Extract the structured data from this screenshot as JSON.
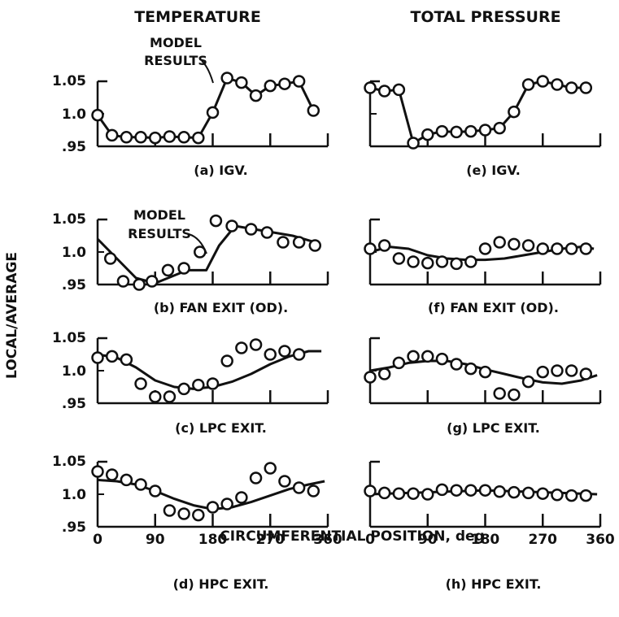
{
  "column_titles": [
    "TEMPERATURE",
    "TOTAL PRESSURE"
  ],
  "ylabel": "LOCAL/AVERAGE",
  "xlabel": "CIRCUMFERENTIAL POSITION, deg",
  "annotation": "MODEL\nRESULTS",
  "y_tick_labels": [
    "1.05",
    "1.0",
    ".95"
  ],
  "x_tick_labels": [
    "0",
    "90",
    "180",
    "270",
    "360"
  ],
  "chart_data": [
    {
      "type": "line",
      "caption": "(a) IGV.",
      "column": "TEMPERATURE",
      "xlim": [
        0,
        360
      ],
      "ylim": [
        0.95,
        1.05
      ],
      "points": {
        "x": [
          0,
          22.5,
          45,
          67.5,
          90,
          112.5,
          135,
          157.5,
          180,
          202.5,
          225,
          247.5,
          270,
          292.5,
          315,
          337.5
        ],
        "y": [
          0.998,
          0.967,
          0.964,
          0.964,
          0.963,
          0.965,
          0.964,
          0.963,
          1.002,
          1.055,
          1.048,
          1.028,
          1.043,
          1.046,
          1.05,
          1.005
        ]
      },
      "model": {
        "x": [
          0,
          22.5,
          45,
          67.5,
          90,
          112.5,
          135,
          157.5,
          180,
          202.5,
          225,
          247.5,
          270,
          292.5,
          315,
          337.5
        ],
        "y": [
          0.998,
          0.967,
          0.964,
          0.964,
          0.963,
          0.965,
          0.964,
          0.963,
          1.002,
          1.055,
          1.048,
          1.028,
          1.043,
          1.046,
          1.05,
          1.005
        ]
      }
    },
    {
      "type": "line",
      "caption": "(b) FAN EXIT (OD).",
      "column": "TEMPERATURE",
      "xlim": [
        0,
        360
      ],
      "ylim": [
        0.95,
        1.05
      ],
      "points": {
        "x": [
          20,
          40,
          65,
          85,
          110,
          135,
          160,
          185,
          210,
          240,
          265,
          290,
          315,
          340
        ],
        "y": [
          0.99,
          0.955,
          0.95,
          0.955,
          0.972,
          0.975,
          1.0,
          1.048,
          1.04,
          1.035,
          1.03,
          1.015,
          1.015,
          1.01
        ]
      },
      "model": {
        "x": [
          0,
          30,
          60,
          90,
          110,
          140,
          170,
          190,
          215,
          245,
          275,
          305,
          340
        ],
        "y": [
          1.02,
          0.99,
          0.96,
          0.952,
          0.96,
          0.972,
          0.972,
          1.01,
          1.04,
          1.035,
          1.03,
          1.025,
          1.015
        ]
      }
    },
    {
      "type": "line",
      "caption": "(c) LPC EXIT.",
      "column": "TEMPERATURE",
      "xlim": [
        0,
        360
      ],
      "ylim": [
        0.95,
        1.05
      ],
      "points": {
        "x": [
          0,
          22.5,
          45,
          67.5,
          90,
          112.5,
          135,
          157.5,
          180,
          202.5,
          225,
          247.5,
          270,
          292.5,
          315
        ],
        "y": [
          1.02,
          1.022,
          1.017,
          0.98,
          0.96,
          0.96,
          0.972,
          0.978,
          0.98,
          1.015,
          1.035,
          1.04,
          1.025,
          1.03,
          1.025
        ]
      },
      "model": {
        "x": [
          0,
          30,
          60,
          90,
          120,
          150,
          180,
          210,
          240,
          270,
          300,
          330,
          350
        ],
        "y": [
          1.025,
          1.02,
          1.005,
          0.985,
          0.975,
          0.972,
          0.975,
          0.983,
          0.995,
          1.01,
          1.022,
          1.03,
          1.03
        ]
      }
    },
    {
      "type": "line",
      "caption": "(d) HPC EXIT.",
      "column": "TEMPERATURE",
      "xlim": [
        0,
        360
      ],
      "ylim": [
        0.95,
        1.05
      ],
      "points": {
        "x": [
          0,
          22.5,
          45,
          67.5,
          90,
          112.5,
          135,
          157.5,
          180,
          202.5,
          225,
          247.5,
          270,
          292.5,
          315,
          337.5
        ],
        "y": [
          1.035,
          1.03,
          1.022,
          1.015,
          1.005,
          0.975,
          0.97,
          0.968,
          0.98,
          0.985,
          0.995,
          1.025,
          1.04,
          1.02,
          1.01,
          1.005
        ]
      },
      "model": {
        "x": [
          0,
          30,
          60,
          90,
          120,
          150,
          180,
          210,
          240,
          270,
          300,
          330,
          355
        ],
        "y": [
          1.022,
          1.02,
          1.015,
          1.005,
          0.993,
          0.983,
          0.977,
          0.98,
          0.988,
          0.998,
          1.008,
          1.015,
          1.02
        ]
      }
    },
    {
      "type": "line",
      "caption": "(e) IGV.",
      "column": "TOTAL PRESSURE",
      "xlim": [
        0,
        360
      ],
      "ylim": [
        0.95,
        1.05
      ],
      "points": {
        "x": [
          0,
          22.5,
          45,
          67.5,
          90,
          112.5,
          135,
          157.5,
          180,
          202.5,
          225,
          247.5,
          270,
          292.5,
          315,
          337.5
        ],
        "y": [
          1.04,
          1.035,
          1.037,
          0.955,
          0.968,
          0.973,
          0.972,
          0.973,
          0.975,
          0.978,
          1.003,
          1.045,
          1.05,
          1.045,
          1.04,
          1.04
        ]
      },
      "model": {
        "x": [
          0,
          22.5,
          45,
          67.5,
          90,
          112.5,
          135,
          157.5,
          180,
          202.5,
          225,
          247.5,
          270,
          292.5,
          315,
          337.5
        ],
        "y": [
          1.04,
          1.035,
          1.037,
          0.955,
          0.968,
          0.973,
          0.972,
          0.973,
          0.975,
          0.978,
          1.003,
          1.045,
          1.05,
          1.045,
          1.04,
          1.04
        ]
      }
    },
    {
      "type": "line",
      "caption": "(f) FAN EXIT (OD).",
      "column": "TOTAL PRESSURE",
      "xlim": [
        0,
        360
      ],
      "ylim": [
        0.95,
        1.05
      ],
      "points": {
        "x": [
          0,
          22.5,
          45,
          67.5,
          90,
          112.5,
          135,
          157.5,
          180,
          202.5,
          225,
          247.5,
          270,
          292.5,
          315,
          337.5
        ],
        "y": [
          1.005,
          1.01,
          0.99,
          0.985,
          0.983,
          0.985,
          0.982,
          0.985,
          1.005,
          1.015,
          1.012,
          1.01,
          1.005,
          1.005,
          1.005,
          1.005
        ]
      },
      "model": {
        "x": [
          0,
          30,
          60,
          90,
          120,
          150,
          180,
          210,
          240,
          270,
          300,
          330,
          350
        ],
        "y": [
          1.0,
          1.008,
          1.005,
          0.995,
          0.99,
          0.988,
          0.988,
          0.99,
          0.995,
          1.0,
          1.005,
          1.008,
          1.005
        ]
      }
    },
    {
      "type": "line",
      "caption": "(g) LPC EXIT.",
      "column": "TOTAL PRESSURE",
      "xlim": [
        0,
        360
      ],
      "ylim": [
        0.95,
        1.05
      ],
      "points": {
        "x": [
          0,
          22.5,
          45,
          67.5,
          90,
          112.5,
          135,
          157.5,
          180,
          202.5,
          225,
          247.5,
          270,
          292.5,
          315,
          337.5
        ],
        "y": [
          0.99,
          0.995,
          1.012,
          1.022,
          1.022,
          1.018,
          1.01,
          1.003,
          0.998,
          0.965,
          0.963,
          0.983,
          0.998,
          1.0,
          1.0,
          0.995
        ]
      },
      "model": {
        "x": [
          0,
          30,
          60,
          90,
          120,
          150,
          180,
          210,
          240,
          270,
          300,
          330,
          355
        ],
        "y": [
          1.0,
          1.005,
          1.012,
          1.015,
          1.015,
          1.01,
          1.002,
          0.995,
          0.988,
          0.982,
          0.98,
          0.985,
          0.993
        ]
      }
    },
    {
      "type": "line",
      "caption": "(h) HPC EXIT.",
      "column": "TOTAL PRESSURE",
      "xlim": [
        0,
        360
      ],
      "ylim": [
        0.95,
        1.05
      ],
      "points": {
        "x": [
          0,
          22.5,
          45,
          67.5,
          90,
          112.5,
          135,
          157.5,
          180,
          202.5,
          225,
          247.5,
          270,
          292.5,
          315,
          337.5
        ],
        "y": [
          1.005,
          1.002,
          1.001,
          1.001,
          1.0,
          1.007,
          1.006,
          1.006,
          1.006,
          1.004,
          1.003,
          1.002,
          1.001,
          0.999,
          0.998,
          0.998
        ]
      },
      "model": {
        "x": [
          0,
          60,
          120,
          180,
          240,
          300,
          355
        ],
        "y": [
          1.0,
          1.002,
          1.004,
          1.006,
          1.004,
          1.002,
          1.0
        ]
      }
    }
  ]
}
